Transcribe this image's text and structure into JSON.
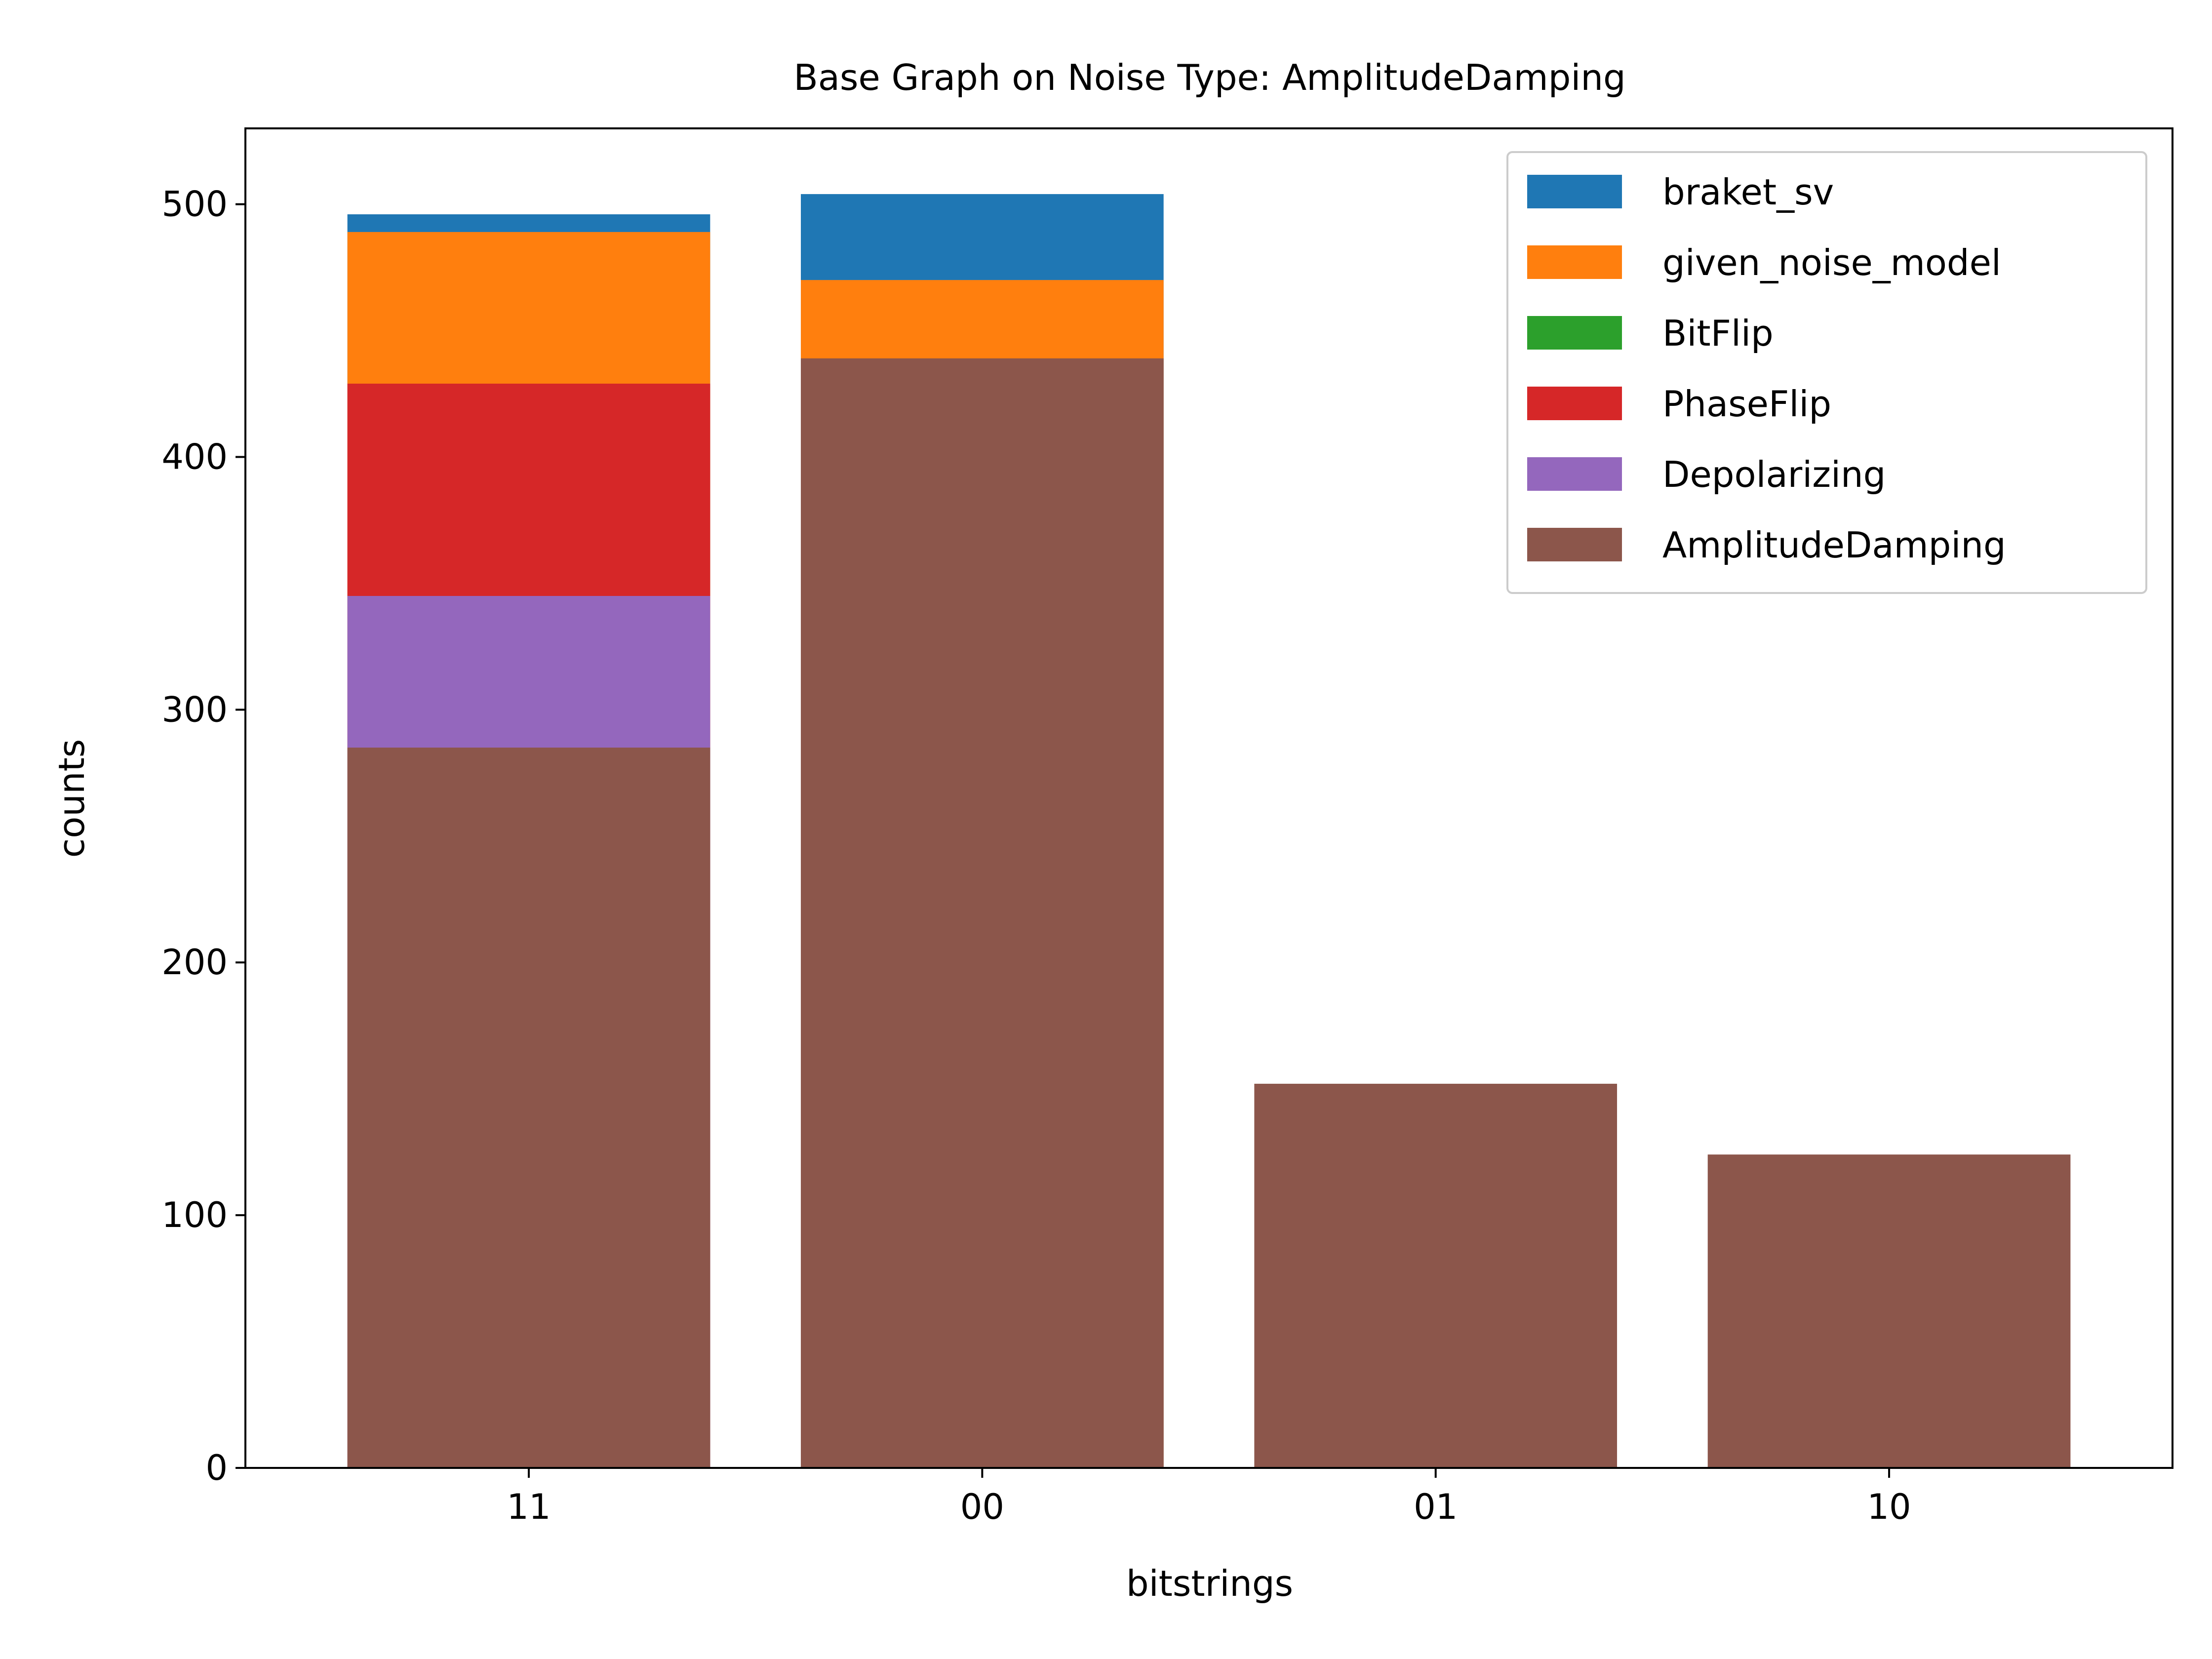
{
  "chart_data": {
    "type": "bar",
    "title": "Base Graph on Noise Type: AmplitudeDamping",
    "xlabel": "bitstrings",
    "ylabel": "counts",
    "categories": [
      "11",
      "00",
      "01",
      "10"
    ],
    "ylim": [
      0,
      530
    ],
    "yticks": [
      0,
      100,
      200,
      300,
      400,
      500
    ],
    "grid": false,
    "legend_position": "top-right",
    "overlapping_bars": true,
    "series": [
      {
        "name": "braket_sv",
        "color": "#1f77b4",
        "values": [
          496,
          504,
          null,
          null
        ]
      },
      {
        "name": "given_noise_model",
        "color": "#ff7f0e",
        "values": [
          489,
          470,
          null,
          null
        ]
      },
      {
        "name": "BitFlip",
        "color": "#2ca02c",
        "values": [
          null,
          null,
          null,
          null
        ]
      },
      {
        "name": "PhaseFlip",
        "color": "#d62728",
        "values": [
          429,
          null,
          null,
          null
        ]
      },
      {
        "name": "Depolarizing",
        "color": "#9467bd",
        "values": [
          345,
          null,
          null,
          null
        ]
      },
      {
        "name": "AmplitudeDamping",
        "color": "#8c564b",
        "values": [
          285,
          439,
          152,
          124
        ]
      }
    ]
  }
}
